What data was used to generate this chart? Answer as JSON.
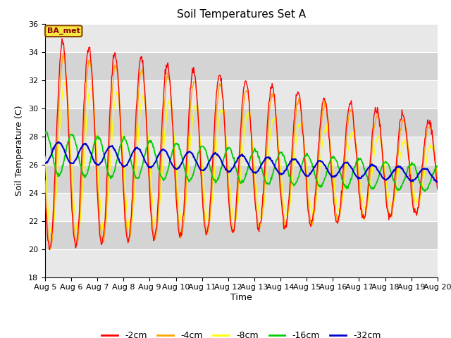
{
  "title": "Soil Temperatures Set A",
  "xlabel": "Time",
  "ylabel": "Soil Temperature (C)",
  "ylim": [
    18,
    36
  ],
  "yticks": [
    18,
    20,
    22,
    24,
    26,
    28,
    30,
    32,
    34,
    36
  ],
  "fig_bg_color": "#ffffff",
  "plot_bg_color": "#e8e8e8",
  "band_color_light": "#e8e8e8",
  "band_color_dark": "#d4d4d4",
  "legend_label": "BA_met",
  "legend_entries": [
    "-2cm",
    "-4cm",
    "-8cm",
    "-16cm",
    "-32cm"
  ],
  "legend_colors": [
    "#ff0000",
    "#ffa500",
    "#ffff00",
    "#00cc00",
    "#0000cd"
  ],
  "line_colors": {
    "-2cm": "#ff0000",
    "-4cm": "#ffa500",
    "-8cm": "#ffff00",
    "-16cm": "#00cc00",
    "-32cm": "#0000cd"
  },
  "x_tick_labels": [
    "Aug 5",
    "Aug 6",
    "Aug 7",
    "Aug 8",
    "Aug 9",
    "Aug 10",
    "Aug 11",
    "Aug 12",
    "Aug 13",
    "Aug 14",
    "Aug 15",
    "Aug 16",
    "Aug 17",
    "Aug 18",
    "Aug 19",
    "Aug 20"
  ],
  "n_days": 15,
  "n_points_per_day": 48
}
